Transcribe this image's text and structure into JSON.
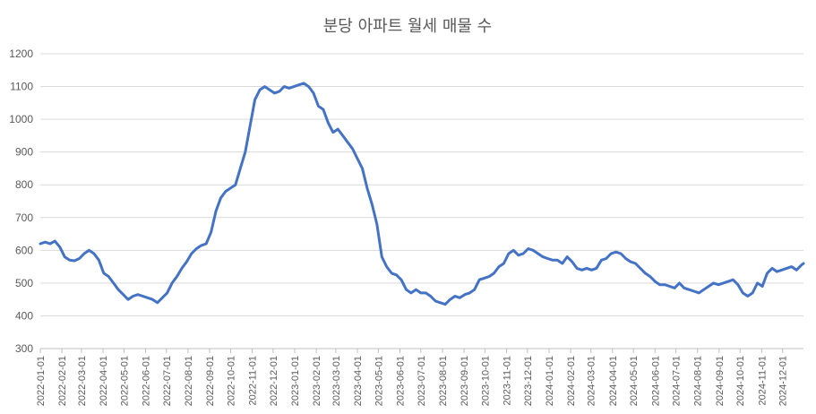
{
  "chart_data": {
    "type": "line",
    "title": "분당 아파트 월세 매물 수",
    "xlabel": "",
    "ylabel": "",
    "ylim": [
      300,
      1200
    ],
    "yticks": [
      300,
      400,
      500,
      600,
      700,
      800,
      900,
      1000,
      1100,
      1200
    ],
    "grid": true,
    "legend": "none",
    "color": "#4472C4",
    "x_start": "2022-01-01",
    "x_end": "2024-12-31",
    "xtick_labels": [
      "2022-01-01",
      "2022-02-01",
      "2022-03-01",
      "2022-04-01",
      "2022-05-01",
      "2022-06-01",
      "2022-07-01",
      "2022-08-01",
      "2022-09-01",
      "2022-10-01",
      "2022-11-01",
      "2022-12-01",
      "2023-01-01",
      "2023-02-01",
      "2023-03-01",
      "2023-04-01",
      "2023-05-01",
      "2023-06-01",
      "2023-07-01",
      "2023-08-01",
      "2023-09-01",
      "2023-10-01",
      "2023-11-01",
      "2023-12-01",
      "2024-01-01",
      "2024-02-01",
      "2024-03-01",
      "2024-04-01",
      "2024-05-01",
      "2024-06-01",
      "2024-07-01",
      "2024-08-01",
      "2024-09-01",
      "2024-10-01",
      "2024-11-01",
      "2024-12-01"
    ],
    "series": [
      {
        "name": "",
        "points": [
          [
            "2022-01-01",
            620
          ],
          [
            "2022-01-08",
            625
          ],
          [
            "2022-01-15",
            620
          ],
          [
            "2022-01-22",
            628
          ],
          [
            "2022-01-29",
            610
          ],
          [
            "2022-02-05",
            580
          ],
          [
            "2022-02-12",
            570
          ],
          [
            "2022-02-19",
            568
          ],
          [
            "2022-02-26",
            575
          ],
          [
            "2022-03-05",
            590
          ],
          [
            "2022-03-12",
            600
          ],
          [
            "2022-03-19",
            590
          ],
          [
            "2022-03-26",
            570
          ],
          [
            "2022-04-02",
            530
          ],
          [
            "2022-04-09",
            520
          ],
          [
            "2022-04-16",
            500
          ],
          [
            "2022-04-23",
            480
          ],
          [
            "2022-04-30",
            465
          ],
          [
            "2022-05-07",
            450
          ],
          [
            "2022-05-14",
            460
          ],
          [
            "2022-05-21",
            465
          ],
          [
            "2022-05-28",
            460
          ],
          [
            "2022-06-04",
            455
          ],
          [
            "2022-06-11",
            450
          ],
          [
            "2022-06-18",
            440
          ],
          [
            "2022-06-25",
            455
          ],
          [
            "2022-07-02",
            470
          ],
          [
            "2022-07-09",
            500
          ],
          [
            "2022-07-16",
            520
          ],
          [
            "2022-07-23",
            545
          ],
          [
            "2022-07-30",
            565
          ],
          [
            "2022-08-06",
            590
          ],
          [
            "2022-08-13",
            605
          ],
          [
            "2022-08-20",
            615
          ],
          [
            "2022-08-27",
            620
          ],
          [
            "2022-09-03",
            655
          ],
          [
            "2022-09-10",
            720
          ],
          [
            "2022-09-17",
            760
          ],
          [
            "2022-09-24",
            780
          ],
          [
            "2022-10-01",
            790
          ],
          [
            "2022-10-08",
            800
          ],
          [
            "2022-10-15",
            850
          ],
          [
            "2022-10-22",
            900
          ],
          [
            "2022-10-29",
            980
          ],
          [
            "2022-11-05",
            1060
          ],
          [
            "2022-11-12",
            1090
          ],
          [
            "2022-11-19",
            1100
          ],
          [
            "2022-11-26",
            1090
          ],
          [
            "2022-12-03",
            1080
          ],
          [
            "2022-12-10",
            1085
          ],
          [
            "2022-12-17",
            1100
          ],
          [
            "2022-12-24",
            1095
          ],
          [
            "2022-12-31",
            1100
          ],
          [
            "2023-01-07",
            1105
          ],
          [
            "2023-01-14",
            1110
          ],
          [
            "2023-01-21",
            1100
          ],
          [
            "2023-01-28",
            1080
          ],
          [
            "2023-02-04",
            1040
          ],
          [
            "2023-02-11",
            1030
          ],
          [
            "2023-02-18",
            990
          ],
          [
            "2023-02-25",
            960
          ],
          [
            "2023-03-04",
            970
          ],
          [
            "2023-03-11",
            950
          ],
          [
            "2023-03-18",
            930
          ],
          [
            "2023-03-25",
            910
          ],
          [
            "2023-04-01",
            880
          ],
          [
            "2023-04-08",
            850
          ],
          [
            "2023-04-15",
            790
          ],
          [
            "2023-04-22",
            740
          ],
          [
            "2023-04-29",
            680
          ],
          [
            "2023-05-06",
            580
          ],
          [
            "2023-05-13",
            550
          ],
          [
            "2023-05-20",
            530
          ],
          [
            "2023-05-27",
            525
          ],
          [
            "2023-06-03",
            510
          ],
          [
            "2023-06-10",
            480
          ],
          [
            "2023-06-17",
            470
          ],
          [
            "2023-06-24",
            480
          ],
          [
            "2023-07-01",
            470
          ],
          [
            "2023-07-08",
            470
          ],
          [
            "2023-07-15",
            460
          ],
          [
            "2023-07-22",
            445
          ],
          [
            "2023-07-29",
            440
          ],
          [
            "2023-08-05",
            435
          ],
          [
            "2023-08-12",
            450
          ],
          [
            "2023-08-19",
            460
          ],
          [
            "2023-08-26",
            455
          ],
          [
            "2023-09-02",
            465
          ],
          [
            "2023-09-09",
            470
          ],
          [
            "2023-09-16",
            480
          ],
          [
            "2023-09-23",
            510
          ],
          [
            "2023-09-30",
            515
          ],
          [
            "2023-10-07",
            520
          ],
          [
            "2023-10-14",
            530
          ],
          [
            "2023-10-21",
            550
          ],
          [
            "2023-10-28",
            560
          ],
          [
            "2023-11-04",
            590
          ],
          [
            "2023-11-11",
            600
          ],
          [
            "2023-11-18",
            585
          ],
          [
            "2023-11-25",
            590
          ],
          [
            "2023-12-02",
            605
          ],
          [
            "2023-12-09",
            600
          ],
          [
            "2023-12-16",
            590
          ],
          [
            "2023-12-23",
            580
          ],
          [
            "2023-12-30",
            575
          ],
          [
            "2024-01-06",
            570
          ],
          [
            "2024-01-13",
            570
          ],
          [
            "2024-01-20",
            560
          ],
          [
            "2024-01-27",
            580
          ],
          [
            "2024-02-03",
            565
          ],
          [
            "2024-02-10",
            545
          ],
          [
            "2024-02-17",
            540
          ],
          [
            "2024-02-24",
            545
          ],
          [
            "2024-03-02",
            540
          ],
          [
            "2024-03-09",
            545
          ],
          [
            "2024-03-16",
            570
          ],
          [
            "2024-03-23",
            575
          ],
          [
            "2024-03-30",
            590
          ],
          [
            "2024-04-06",
            595
          ],
          [
            "2024-04-13",
            590
          ],
          [
            "2024-04-20",
            575
          ],
          [
            "2024-04-27",
            565
          ],
          [
            "2024-05-04",
            560
          ],
          [
            "2024-05-11",
            545
          ],
          [
            "2024-05-18",
            530
          ],
          [
            "2024-05-25",
            520
          ],
          [
            "2024-06-01",
            505
          ],
          [
            "2024-06-08",
            495
          ],
          [
            "2024-06-15",
            495
          ],
          [
            "2024-06-22",
            490
          ],
          [
            "2024-06-29",
            485
          ],
          [
            "2024-07-06",
            500
          ],
          [
            "2024-07-13",
            485
          ],
          [
            "2024-07-20",
            480
          ],
          [
            "2024-07-27",
            475
          ],
          [
            "2024-08-03",
            470
          ],
          [
            "2024-08-10",
            480
          ],
          [
            "2024-08-17",
            490
          ],
          [
            "2024-08-24",
            500
          ],
          [
            "2024-08-31",
            495
          ],
          [
            "2024-09-07",
            500
          ],
          [
            "2024-09-14",
            505
          ],
          [
            "2024-09-21",
            510
          ],
          [
            "2024-09-28",
            495
          ],
          [
            "2024-10-05",
            470
          ],
          [
            "2024-10-12",
            460
          ],
          [
            "2024-10-19",
            470
          ],
          [
            "2024-10-26",
            500
          ],
          [
            "2024-11-02",
            490
          ],
          [
            "2024-11-09",
            530
          ],
          [
            "2024-11-16",
            545
          ],
          [
            "2024-11-23",
            535
          ],
          [
            "2024-11-30",
            540
          ],
          [
            "2024-12-07",
            545
          ],
          [
            "2024-12-14",
            550
          ],
          [
            "2024-12-21",
            540
          ],
          [
            "2024-12-28",
            555
          ],
          [
            "2024-12-31",
            560
          ]
        ]
      }
    ]
  }
}
